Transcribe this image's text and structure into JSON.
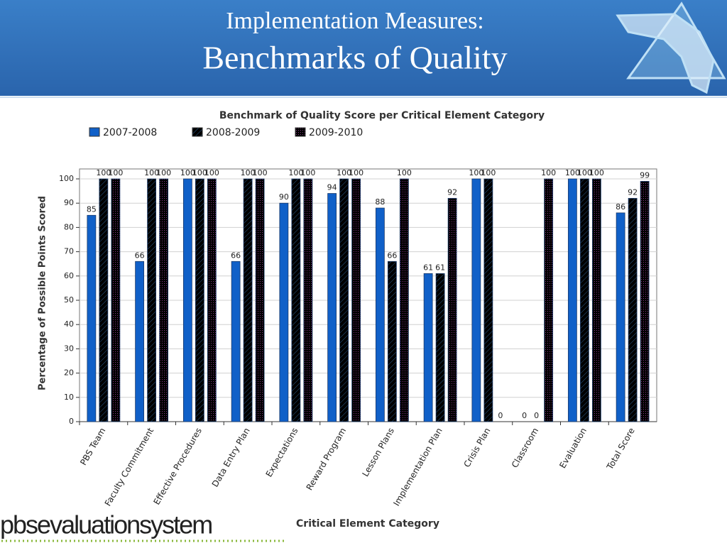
{
  "header": {
    "title_line1": "Implementation Measures:",
    "title_line2": "Benchmarks of Quality"
  },
  "footer": {
    "logo": "pbsevaluationsystem"
  },
  "chart_data": {
    "type": "bar",
    "title": "Benchmark of Quality Score per Critical Element Category",
    "x_label": "Critical Element Category",
    "y_label": "Percentage of Possible Points Scored",
    "categories": [
      "PBS Team",
      "Faculty Commitment",
      "Effective Procedures",
      "Data Entry Plan",
      "Expectations",
      "Reward Program",
      "Lesson Plans",
      "Implementation Plan",
      "Crisis Plan",
      "Classroom",
      "Evaluation",
      "Total Score"
    ],
    "series": [
      {
        "name": "2007-2008",
        "color": "#1060c8",
        "pattern": "solid",
        "values": [
          85,
          66,
          100,
          66,
          90,
          94,
          88,
          61,
          100,
          0,
          100,
          86
        ]
      },
      {
        "name": "2008-2009",
        "color": "#b8dcf0",
        "pattern": "hatch",
        "values": [
          100,
          100,
          100,
          100,
          100,
          100,
          66,
          61,
          100,
          0,
          100,
          92
        ]
      },
      {
        "name": "2009-2010",
        "color": "#f2d4f0",
        "pattern": "dots",
        "values": [
          100,
          100,
          100,
          100,
          100,
          100,
          100,
          92,
          0,
          100,
          100,
          99
        ]
      }
    ],
    "ylim": [
      0,
      100
    ],
    "yticks": [
      0,
      10,
      20,
      30,
      40,
      50,
      60,
      70,
      80,
      90,
      100
    ],
    "grid": true
  }
}
